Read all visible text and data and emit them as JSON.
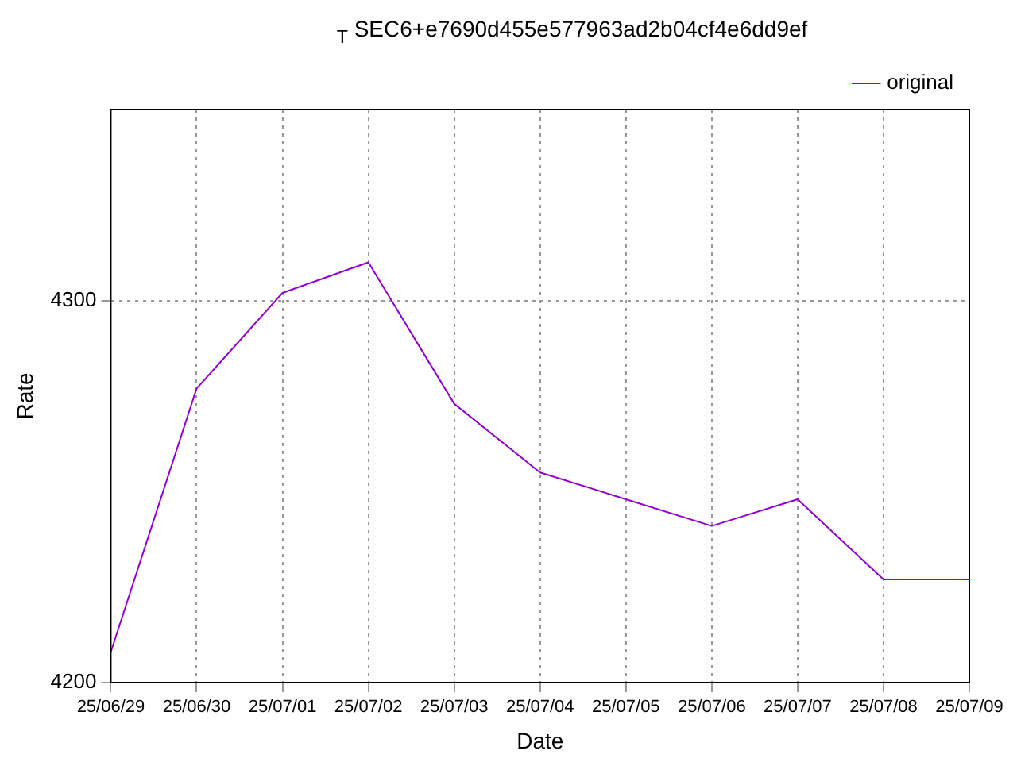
{
  "chart_data": {
    "type": "line",
    "title": "$_{T}$ SEC6+e7690d455e577963ad2b04cf4e6dd9ef",
    "xlabel": "Date",
    "ylabel": "Rate",
    "categories": [
      "25/06/29",
      "25/06/30",
      "25/07/01",
      "25/07/02",
      "25/07/03",
      "25/07/04",
      "25/07/05",
      "25/07/06",
      "25/07/07",
      "25/07/08",
      "25/07/09"
    ],
    "series": [
      {
        "name": "original",
        "color": "#9400d3",
        "values": [
          4208,
          4277,
          4302,
          4310,
          4273,
          4255,
          4248,
          4241,
          4248,
          4227,
          4227
        ]
      }
    ],
    "ylim": [
      4200,
      4350
    ],
    "yticks": [
      4200,
      4300
    ],
    "grid": true,
    "legend": "top right",
    "marker": "none"
  }
}
